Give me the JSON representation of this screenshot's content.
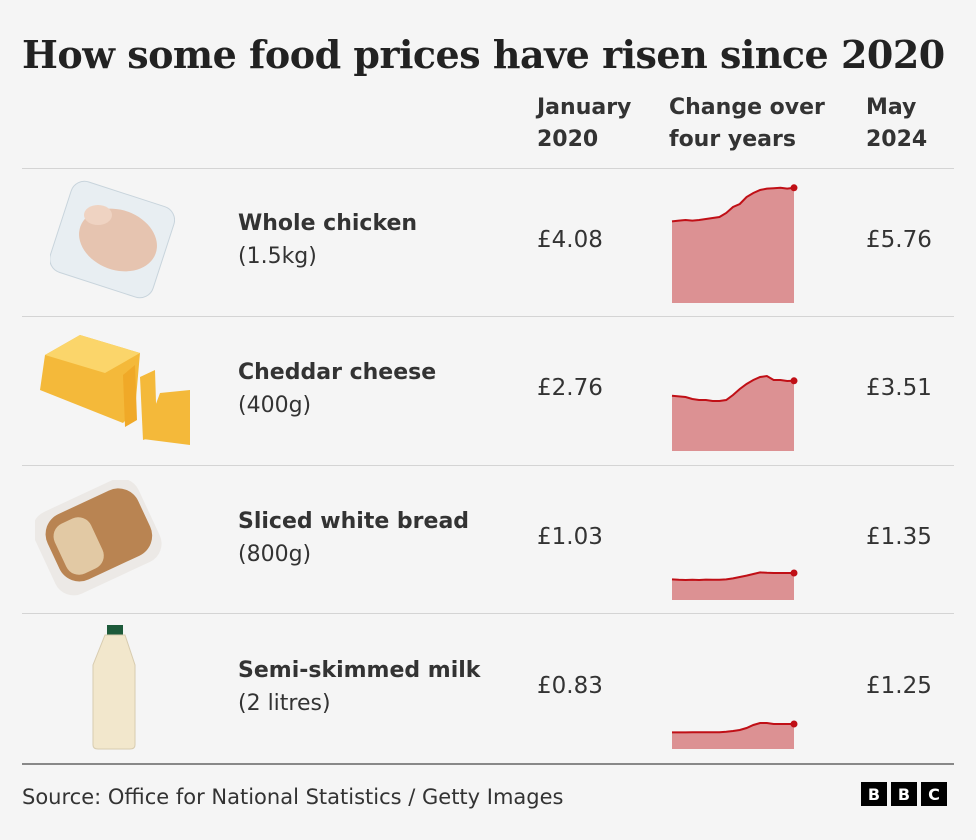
{
  "title": "How some food prices have risen since 2020",
  "columns": {
    "jan": "January 2020",
    "change": "Change over four years",
    "may": "May 2024"
  },
  "rows": [
    {
      "name": "Whole chicken",
      "size": "(1.5kg)",
      "jan": "£4.08",
      "may": "£5.76",
      "image": "chicken"
    },
    {
      "name": "Cheddar cheese",
      "size": "(400g)",
      "jan": "£2.76",
      "may": "£3.51",
      "image": "cheese"
    },
    {
      "name": "Sliced white bread",
      "size": "(800g)",
      "jan": "£1.03",
      "may": "£1.35",
      "image": "bread"
    },
    {
      "name": "Semi-skimmed milk",
      "size": "(2 litres)",
      "jan": "£0.83",
      "may": "£1.25",
      "image": "milk"
    }
  ],
  "chart_data": {
    "type": "area",
    "x_range": [
      "January 2020",
      "May 2024"
    ],
    "colors": {
      "line": "#c00f16",
      "fill": "#dc9193"
    },
    "series": [
      [
        4.08,
        4.12,
        4.15,
        4.12,
        4.15,
        4.2,
        4.25,
        4.3,
        4.5,
        4.8,
        4.95,
        5.3,
        5.5,
        5.65,
        5.72,
        5.74,
        5.76,
        5.72,
        5.76
      ],
      [
        2.76,
        2.73,
        2.7,
        2.6,
        2.55,
        2.55,
        2.5,
        2.5,
        2.55,
        2.8,
        3.1,
        3.35,
        3.55,
        3.7,
        3.75,
        3.55,
        3.55,
        3.5,
        3.51
      ],
      [
        1.03,
        1.01,
        1.0,
        1.01,
        1.0,
        1.02,
        1.01,
        1.01,
        1.03,
        1.08,
        1.15,
        1.22,
        1.3,
        1.38,
        1.36,
        1.35,
        1.35,
        1.35,
        1.35
      ],
      [
        0.83,
        0.83,
        0.83,
        0.84,
        0.84,
        0.84,
        0.84,
        0.84,
        0.86,
        0.9,
        0.95,
        1.05,
        1.2,
        1.3,
        1.3,
        1.25,
        1.25,
        1.25,
        1.25
      ]
    ]
  },
  "footer": {
    "source": "Source: Office for National Statistics / Getty Images",
    "logo": "BBC"
  }
}
